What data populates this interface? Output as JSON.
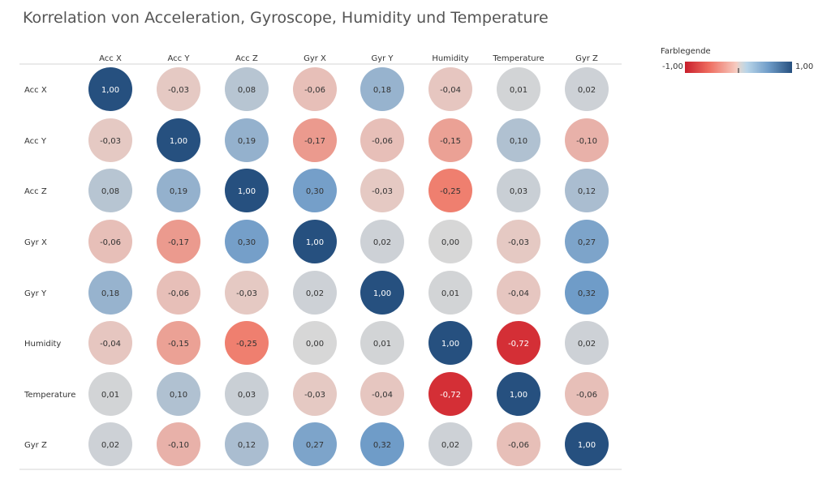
{
  "title": "Korrelation von Acceleration, Gyroscope, Humidity und Temperature",
  "legend": {
    "title": "Farblegende",
    "min_label": "-1,00",
    "max_label": "1,00",
    "colors": [
      "#c81e2b",
      "#ee6b5e",
      "#f6cbc0",
      "#d7d7d7",
      "#b8d4e8",
      "#6f9cc8",
      "#26507f"
    ]
  },
  "chart_data": {
    "type": "heatmap",
    "title": "Korrelation von Acceleration, Gyroscope, Humidity und Temperature",
    "columns": [
      "Acc X",
      "Acc Y",
      "Acc Z",
      "Gyr X",
      "Gyr Y",
      "Humidity",
      "Temperature",
      "Gyr Z"
    ],
    "rows": [
      "Acc X",
      "Acc Y",
      "Acc Z",
      "Gyr X",
      "Gyr Y",
      "Humidity",
      "Temperature",
      "Gyr Z"
    ],
    "values": [
      [
        1.0,
        -0.03,
        0.08,
        -0.06,
        0.18,
        -0.04,
        0.01,
        0.02
      ],
      [
        -0.03,
        1.0,
        0.19,
        -0.17,
        -0.06,
        -0.15,
        0.1,
        -0.1
      ],
      [
        0.08,
        0.19,
        1.0,
        0.3,
        -0.03,
        -0.25,
        0.03,
        0.12
      ],
      [
        -0.06,
        -0.17,
        0.3,
        1.0,
        0.02,
        0.0,
        -0.03,
        0.27
      ],
      [
        0.18,
        -0.06,
        -0.03,
        0.02,
        1.0,
        0.01,
        -0.04,
        0.32
      ],
      [
        -0.04,
        -0.15,
        -0.25,
        0.0,
        0.01,
        1.0,
        -0.72,
        0.02
      ],
      [
        0.01,
        0.1,
        0.03,
        -0.03,
        -0.04,
        -0.72,
        1.0,
        -0.06
      ],
      [
        0.02,
        -0.1,
        0.12,
        0.27,
        0.32,
        0.02,
        -0.06,
        1.0
      ]
    ],
    "value_labels": [
      [
        "1,00",
        "-0,03",
        "0,08",
        "-0,06",
        "0,18",
        "-0,04",
        "0,01",
        "0,02"
      ],
      [
        "-0,03",
        "1,00",
        "0,19",
        "-0,17",
        "-0,06",
        "-0,15",
        "0,10",
        "-0,10"
      ],
      [
        "0,08",
        "0,19",
        "1,00",
        "0,30",
        "-0,03",
        "-0,25",
        "0,03",
        "0,12"
      ],
      [
        "-0,06",
        "-0,17",
        "0,30",
        "1,00",
        "0,02",
        "0,00",
        "-0,03",
        "0,27"
      ],
      [
        "0,18",
        "-0,06",
        "-0,03",
        "0,02",
        "1,00",
        "0,01",
        "-0,04",
        "0,32"
      ],
      [
        "-0,04",
        "-0,15",
        "-0,25",
        "0,00",
        "0,01",
        "1,00",
        "-0,72",
        "0,02"
      ],
      [
        "0,01",
        "0,10",
        "0,03",
        "-0,03",
        "-0,04",
        "-0,72",
        "1,00",
        "-0,06"
      ],
      [
        "0,02",
        "-0,10",
        "0,12",
        "0,27",
        "0,32",
        "0,02",
        "-0,06",
        "1,00"
      ]
    ],
    "color_range": [
      -1.0,
      1.0
    ],
    "legend_position": "top-right",
    "grid": false
  }
}
